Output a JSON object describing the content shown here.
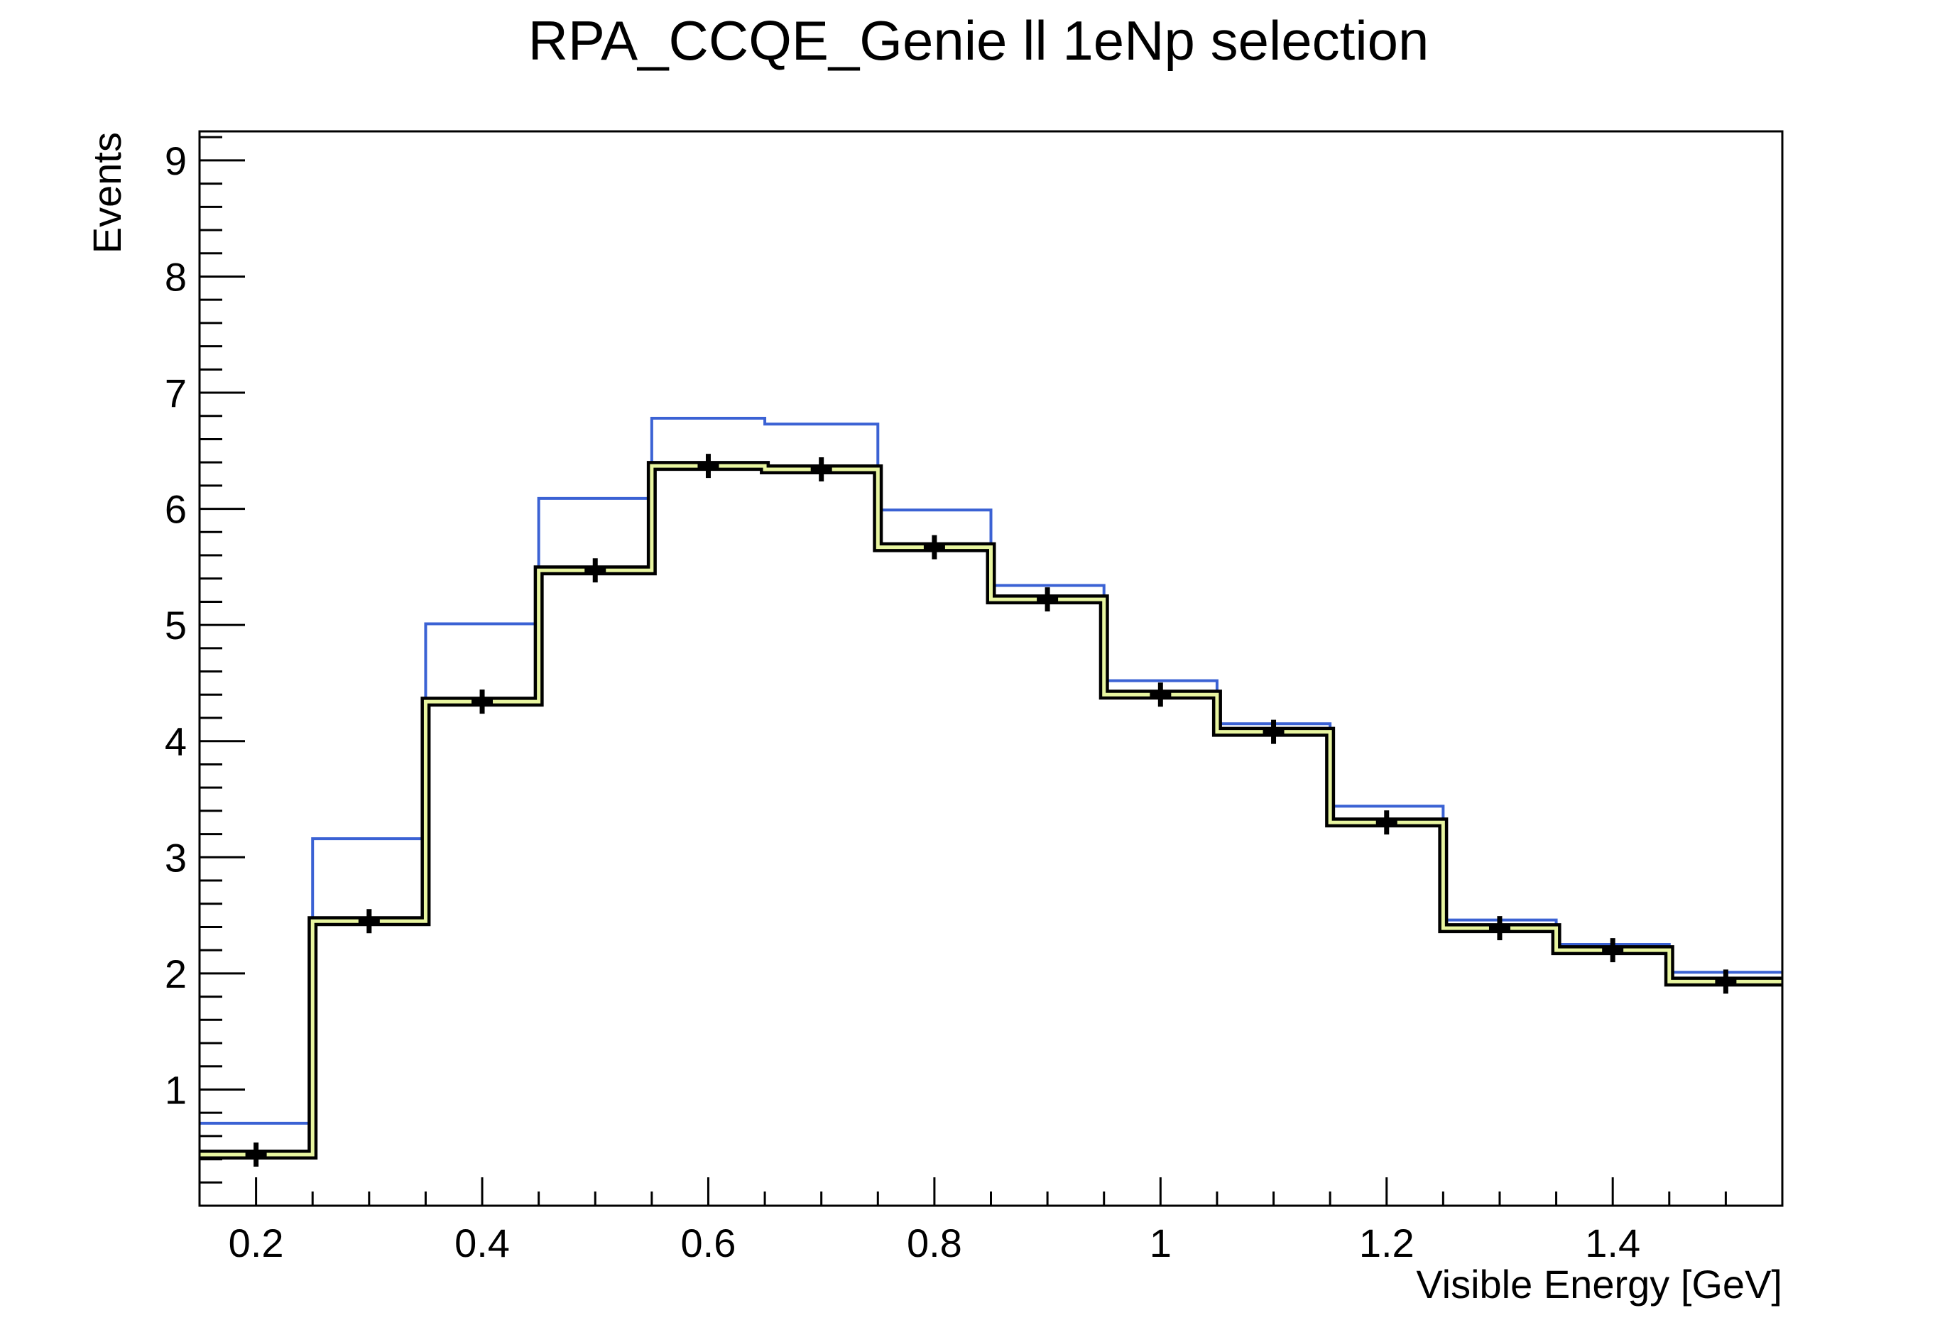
{
  "chart_data": {
    "type": "line",
    "title": "RPA_CCQE_Genie ll 1eNp selection",
    "xlabel": "Visible Energy [GeV]",
    "ylabel": "Events",
    "xlim": [
      0.15,
      1.55
    ],
    "ylim": [
      0,
      9.25
    ],
    "x_ticks": [
      "0.2",
      "0.4",
      "0.6",
      "0.8",
      "1",
      "1.2",
      "1.4"
    ],
    "y_ticks": [
      "1",
      "2",
      "3",
      "4",
      "5",
      "6",
      "7",
      "8",
      "9"
    ],
    "bin_edges": [
      0.15,
      0.25,
      0.35,
      0.45,
      0.55,
      0.65,
      0.75,
      0.85,
      0.95,
      1.05,
      1.15,
      1.25,
      1.35,
      1.45,
      1.55
    ],
    "series": [
      {
        "color": "#3b62d4",
        "style": "step",
        "values": [
          0.71,
          3.16,
          5.01,
          6.09,
          6.78,
          6.73,
          5.99,
          5.34,
          4.52,
          4.15,
          3.44,
          2.46,
          2.25,
          2.01
        ]
      },
      {
        "color": "#e8f5a0",
        "style": "step-band",
        "values": [
          0.44,
          2.45,
          4.34,
          5.47,
          6.37,
          6.34,
          5.67,
          5.22,
          4.4,
          4.08,
          3.3,
          2.39,
          2.2,
          1.93
        ]
      },
      {
        "color": "#000000",
        "style": "points",
        "x": [
          0.2,
          0.3,
          0.4,
          0.5,
          0.6,
          0.7,
          0.8,
          0.9,
          1.0,
          1.1,
          1.2,
          1.3,
          1.4,
          1.5
        ],
        "values": [
          0.44,
          2.45,
          4.34,
          5.47,
          6.37,
          6.34,
          5.67,
          5.22,
          4.4,
          4.08,
          3.3,
          2.39,
          2.2,
          1.93
        ]
      }
    ],
    "grid": false,
    "legend": "none"
  }
}
